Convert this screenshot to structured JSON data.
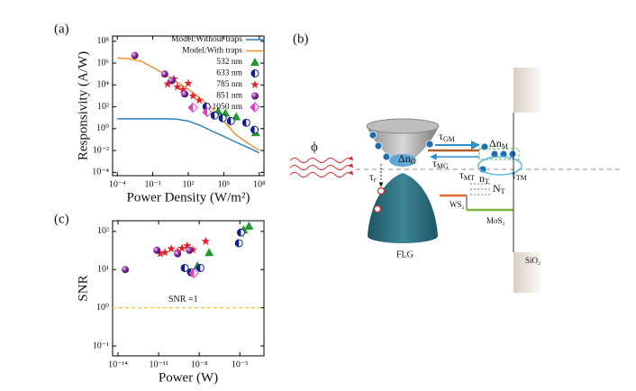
{
  "chart_data": [
    {
      "type": "scatter",
      "panel": "(a)",
      "x_label": "Power Density (W/m²)",
      "y_label": "Responsivity (A/W)",
      "xlog": true,
      "ylog": true,
      "legend": "upper right",
      "xlim": [
        4e-05,
        250000000
      ],
      "ylim": [
        5e-05,
        300000000
      ],
      "xticks": [
        {
          "value": 0.0001,
          "label": "10⁻⁴"
        },
        {
          "value": 0.1,
          "label": "10⁻¹"
        },
        {
          "value": 100,
          "label": "10²"
        },
        {
          "value": 100000,
          "label": "10⁵"
        },
        {
          "value": 100000000,
          "label": "10⁸"
        }
      ],
      "yticks": [
        {
          "value": 0.0001,
          "label": "10⁻⁴"
        },
        {
          "value": 0.01,
          "label": "10⁻²"
        },
        {
          "value": 1,
          "label": "10⁰"
        },
        {
          "value": 100,
          "label": "10²"
        },
        {
          "value": 10000,
          "label": "10⁴"
        },
        {
          "value": 1000000,
          "label": "10⁶"
        },
        {
          "value": 100000000,
          "label": "10⁸"
        }
      ],
      "series": [
        {
          "name": "Model:Without traps",
          "color": "#2b7bb9",
          "style": "line",
          "x": [
            0.0001,
            0.001,
            0.01,
            0.1,
            1,
            10,
            100,
            1000,
            10000,
            100000,
            1000000,
            10000000,
            100000000
          ],
          "values": [
            8,
            8,
            8,
            8,
            8,
            7.5,
            5,
            2,
            0.6,
            0.2,
            0.06,
            0.02,
            0.006
          ]
        },
        {
          "name": "Model:With traps",
          "color": "#f08c28",
          "style": "line",
          "x": [
            0.0001,
            0.001,
            0.01,
            0.1,
            1,
            10,
            100,
            1000,
            10000,
            100000,
            1000000,
            10000000,
            100000000
          ],
          "values": [
            3000000,
            2500000,
            1500000,
            400000,
            100000,
            20000,
            4000,
            600,
            80,
            5,
            0.3,
            0.05,
            0.01
          ]
        },
        {
          "name": "532 nm",
          "color": "#1f9a2e",
          "marker": "triangle",
          "x": [
            34000,
            138000,
            1120000,
            50000000
          ],
          "values": [
            40,
            27,
            12.6,
            0.44
          ]
        },
        {
          "name": "633 nm",
          "color": "#0c1f8c",
          "marker": "half-circle",
          "x": [
            3500,
            17000,
            81000,
            400000,
            8000000,
            40000000
          ],
          "values": [
            105,
            16,
            9,
            5,
            3.5,
            0.8
          ]
        },
        {
          "name": "785 nm",
          "color": "#e4202a",
          "marker": "star",
          "x": [
            1.8,
            6,
            12,
            35,
            100,
            250,
            850
          ],
          "values": [
            12000,
            36000,
            6600,
            3700,
            14000,
            1000,
            400
          ]
        },
        {
          "name": "851 nm",
          "color": "#8b2aa0",
          "marker": "circle",
          "x": [
            0.003,
            1,
            4,
            50
          ],
          "values": [
            5000000,
            100000,
            25000,
            1500
          ]
        },
        {
          "name": "1050 nm",
          "color": "#e040c0",
          "marker": "half-diamond",
          "x": [
            250,
            4000
          ],
          "values": [
            85,
            33
          ]
        }
      ]
    },
    {
      "type": "scatter",
      "panel": "(c)",
      "x_label": "Power (W)",
      "y_label": "SNR",
      "xlog": true,
      "ylog": true,
      "xlim": [
        4e-15,
        0.0006
      ],
      "ylim": [
        0.055,
        190
      ],
      "xticks": [
        {
          "value": 1e-14,
          "label": "10⁻¹⁴"
        },
        {
          "value": 1e-11,
          "label": "10⁻¹¹"
        },
        {
          "value": 1e-08,
          "label": "10⁻⁸"
        },
        {
          "value": 1e-05,
          "label": "10⁻⁵"
        }
      ],
      "yticks": [
        {
          "value": 0.1,
          "label": "10⁻¹"
        },
        {
          "value": 1,
          "label": "10⁰"
        },
        {
          "value": 10,
          "label": "10¹"
        },
        {
          "value": 100,
          "label": "10²"
        }
      ],
      "hline": {
        "value": 1,
        "label": "SNR =1",
        "color": "#f2c23a"
      },
      "series": [
        {
          "name": "532 nm",
          "color": "#1f9a2e",
          "marker": "triangle",
          "x": [
            7.4e-09,
            5.4e-08,
            1.9e-05,
            4.7e-05
          ],
          "values": [
            12.6,
            28,
            110,
            138
          ]
        },
        {
          "name": "633 nm",
          "color": "#0c1f8c",
          "marker": "half-circle",
          "x": [
            8.5e-10,
            2.5e-09,
            1.2e-08,
            8.5e-06,
            1.2e-05
          ],
          "values": [
            11,
            8.5,
            11,
            49,
            93
          ]
        },
        {
          "name": "785 nm",
          "color": "#e4202a",
          "marker": "star",
          "x": [
            1.3e-11,
            3e-11,
            8.5e-11,
            2.5e-10,
            5.4e-10,
            1.3e-09,
            3.4e-09,
            3e-08
          ],
          "values": [
            26,
            28,
            35,
            30,
            36,
            42,
            33,
            55
          ]
        },
        {
          "name": "851 nm",
          "color": "#8b2aa0",
          "marker": "circle",
          "x": [
            3.4e-14,
            7.4e-12,
            2.5e-10,
            1.9e-09
          ],
          "values": [
            10,
            32,
            26,
            32
          ]
        },
        {
          "name": "1050 nm",
          "color": "#e040c0",
          "marker": "half-diamond",
          "x": [
            4e-09
          ],
          "values": [
            8
          ]
        }
      ]
    }
  ],
  "diagram": {
    "panel": "(b)",
    "phi": "ϕ",
    "dn_g": {
      "main": "Δn",
      "sub": "G"
    },
    "tau_gm": {
      "main": "τ",
      "sub": "GM"
    },
    "tau_mg": {
      "main": "τ",
      "sub": "MG"
    },
    "dn_m": {
      "main": "Δn",
      "sub": "M"
    },
    "tau_mt": {
      "main": "τ",
      "sub": "MT"
    },
    "n_t_small": {
      "main": "n",
      "sub": "T"
    },
    "n_t_big": {
      "main": "N",
      "sub": "T"
    },
    "tau_tm": {
      "main": "τ",
      "sub": "TM"
    },
    "tau_r": {
      "main": "τ",
      "sub": "r"
    },
    "ws2": "WS₂",
    "mos2": "MoS₂",
    "flg": "FLG",
    "sio2": "SiO₂"
  }
}
